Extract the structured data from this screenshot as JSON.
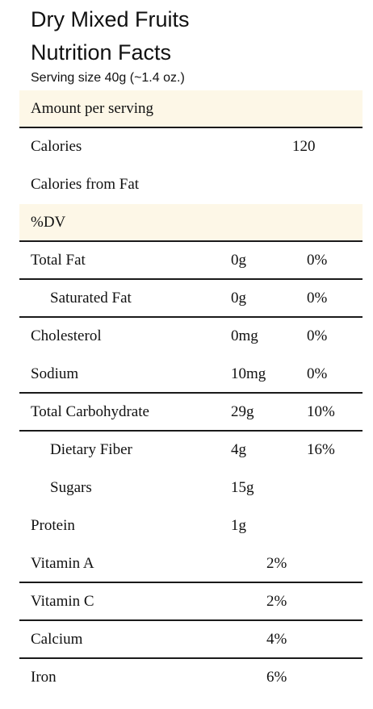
{
  "header": {
    "title_line1": "Dry Mixed Fruits",
    "title_line2": "Nutrition Facts",
    "serving_size": "Serving size 40g (~1.4 oz.)"
  },
  "sections": {
    "amount_per_serving": "Amount per serving",
    "calories_label": "Calories",
    "calories_value": "120",
    "calories_from_fat_label": "Calories from Fat",
    "dv_label": "%DV"
  },
  "nutrients": [
    {
      "label": "Total Fat",
      "amount": "0g",
      "dv": "0%"
    },
    {
      "label": "Saturated Fat",
      "amount": "0g",
      "dv": "0%"
    },
    {
      "label": "Cholesterol",
      "amount": "0mg",
      "dv": "0%"
    },
    {
      "label": "Sodium",
      "amount": "10mg",
      "dv": "0%"
    },
    {
      "label": "Total Carbohydrate",
      "amount": "29g",
      "dv": "10%"
    },
    {
      "label": "Dietary Fiber",
      "amount": "4g",
      "dv": "16%"
    },
    {
      "label": "Sugars",
      "amount": "15g",
      "dv": ""
    },
    {
      "label": "Protein",
      "amount": "1g",
      "dv": ""
    }
  ],
  "vitamins": [
    {
      "label": "Vitamin A",
      "dv": "2%"
    },
    {
      "label": "Vitamin C",
      "dv": "2%"
    },
    {
      "label": "Calcium",
      "dv": "4%"
    },
    {
      "label": "Iron",
      "dv": "6%"
    }
  ],
  "colors": {
    "shade": "#fdf7e7",
    "rule": "#1a1a1a"
  }
}
